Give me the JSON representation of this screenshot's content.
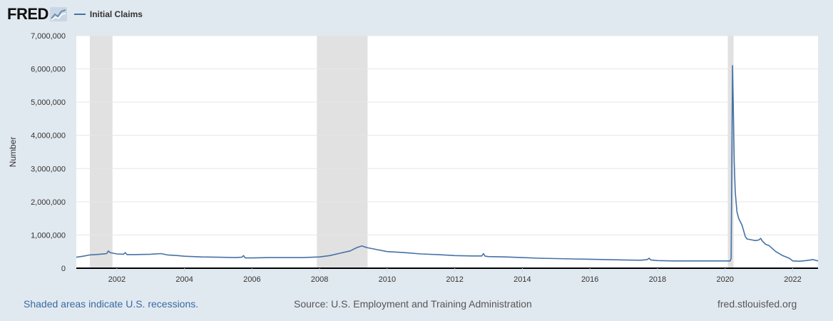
{
  "header": {
    "logo_text": "FRED",
    "legend_label": "Initial Claims",
    "series_color": "#4572a7"
  },
  "footer": {
    "recessions_note": "Shaded areas indicate U.S. recessions.",
    "source": "Source: U.S. Employment and Training Administration",
    "site": "fred.stlouisfed.org"
  },
  "chart_data": {
    "type": "line",
    "title": "",
    "xlabel": "",
    "ylabel": "Number",
    "xlim": [
      2000.8,
      2022.75
    ],
    "ylim": [
      0,
      7000000
    ],
    "grid": true,
    "legend_position": "top-left",
    "x_ticks": [
      2002,
      2004,
      2006,
      2008,
      2010,
      2012,
      2014,
      2016,
      2018,
      2020,
      2022
    ],
    "x_tick_labels": [
      "2002",
      "2004",
      "2006",
      "2008",
      "2010",
      "2012",
      "2014",
      "2016",
      "2018",
      "2020",
      "2022"
    ],
    "y_ticks": [
      0,
      1000000,
      2000000,
      3000000,
      4000000,
      5000000,
      6000000,
      7000000
    ],
    "y_tick_labels": [
      "0",
      "1,000,000",
      "2,000,000",
      "3,000,000",
      "4,000,000",
      "5,000,000",
      "6,000,000",
      "7,000,000"
    ],
    "recessions": [
      [
        2001.2,
        2001.87
      ],
      [
        2007.92,
        2009.42
      ],
      [
        2020.08,
        2020.25
      ]
    ],
    "series": [
      {
        "name": "Initial Claims",
        "color": "#4572a7",
        "x": [
          2000.8,
          2001.0,
          2001.2,
          2001.5,
          2001.7,
          2001.75,
          2001.8,
          2002.0,
          2002.2,
          2002.25,
          2002.3,
          2002.5,
          2003.0,
          2003.3,
          2003.5,
          2003.8,
          2004.0,
          2004.5,
          2005.0,
          2005.5,
          2005.7,
          2005.75,
          2005.8,
          2006.0,
          2006.5,
          2007.0,
          2007.5,
          2008.0,
          2008.3,
          2008.6,
          2008.9,
          2009.1,
          2009.25,
          2009.4,
          2009.6,
          2010.0,
          2010.5,
          2011.0,
          2011.5,
          2012.0,
          2012.5,
          2012.8,
          2012.85,
          2012.9,
          2013.0,
          2013.5,
          2014.0,
          2014.5,
          2015.0,
          2015.5,
          2016.0,
          2016.5,
          2017.0,
          2017.5,
          2017.7,
          2017.75,
          2017.8,
          2018.0,
          2018.5,
          2019.0,
          2019.5,
          2019.8,
          2020.0,
          2020.15,
          2020.18,
          2020.2,
          2020.22,
          2020.24,
          2020.27,
          2020.3,
          2020.35,
          2020.4,
          2020.5,
          2020.6,
          2020.65,
          2020.7,
          2020.8,
          2020.9,
          2021.0,
          2021.05,
          2021.1,
          2021.2,
          2021.3,
          2021.5,
          2021.7,
          2021.9,
          2022.0,
          2022.2,
          2022.4,
          2022.6,
          2022.75
        ],
        "values": [
          330000,
          360000,
          400000,
          420000,
          440000,
          520000,
          470000,
          430000,
          420000,
          470000,
          410000,
          410000,
          420000,
          440000,
          400000,
          380000,
          360000,
          340000,
          330000,
          320000,
          330000,
          380000,
          310000,
          310000,
          320000,
          320000,
          320000,
          340000,
          380000,
          450000,
          520000,
          620000,
          670000,
          620000,
          580000,
          500000,
          470000,
          430000,
          410000,
          380000,
          370000,
          370000,
          440000,
          360000,
          350000,
          340000,
          320000,
          300000,
          290000,
          280000,
          270000,
          260000,
          250000,
          240000,
          260000,
          300000,
          250000,
          230000,
          220000,
          220000,
          220000,
          220000,
          220000,
          220000,
          300000,
          3300000,
          6100000,
          5000000,
          3200000,
          2300000,
          1700000,
          1500000,
          1300000,
          950000,
          880000,
          870000,
          850000,
          830000,
          850000,
          900000,
          820000,
          720000,
          680000,
          500000,
          380000,
          300000,
          220000,
          210000,
          230000,
          260000,
          220000
        ]
      }
    ]
  }
}
